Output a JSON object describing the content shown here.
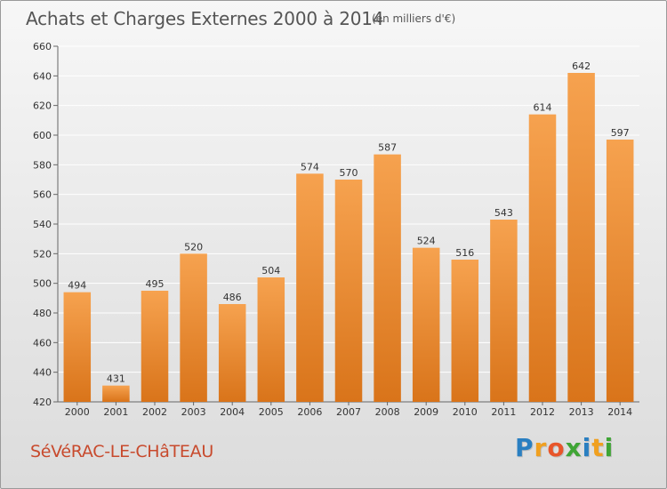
{
  "chart_data": {
    "type": "bar",
    "title": "Achats et Charges Externes 2000 à 2014",
    "subtitle": "(en milliers d'€)",
    "categories": [
      "2000",
      "2001",
      "2002",
      "2003",
      "2004",
      "2005",
      "2006",
      "2007",
      "2008",
      "2009",
      "2010",
      "2011",
      "2012",
      "2013",
      "2014"
    ],
    "values": [
      494,
      431,
      495,
      520,
      486,
      504,
      574,
      570,
      587,
      524,
      516,
      543,
      614,
      642,
      597
    ],
    "value_labels": [
      "494",
      "431",
      "495",
      "520",
      "486",
      "504",
      "574",
      "570",
      "587",
      "524",
      "516",
      "543",
      "614",
      "642",
      "597"
    ],
    "yticks": [
      "420",
      "440",
      "460",
      "480",
      "500",
      "520",
      "540",
      "560",
      "580",
      "600",
      "620",
      "640",
      "660"
    ],
    "ylim": [
      420,
      660
    ],
    "grid": true,
    "colors": {
      "bar_light": "#f6a24f",
      "bar_dark": "#d9741a",
      "grid": "#ffffff"
    }
  },
  "footer": {
    "town": "SéVéRAC-LE-CHâTEAU",
    "logo_letters": [
      "P",
      "r",
      "o",
      "x",
      "i",
      "t",
      "i"
    ],
    "logo_colors": [
      "#2a7fc1",
      "#f0a020",
      "#e8552a",
      "#3fa535",
      "#2a7fc1",
      "#f0a020",
      "#3fa535"
    ]
  }
}
